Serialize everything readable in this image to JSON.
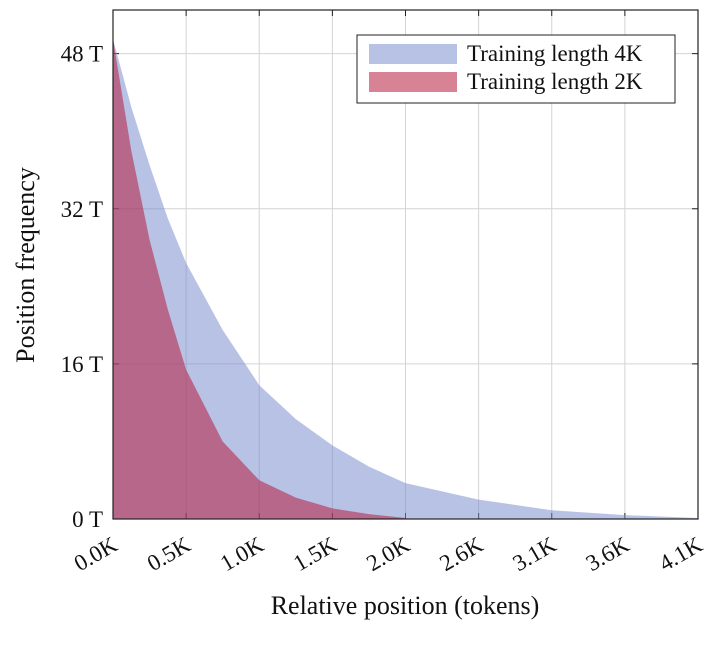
{
  "chart_data": {
    "type": "area",
    "x_label": "Relative position (tokens)",
    "y_label": "Position frequency",
    "x": [
      0,
      128,
      256,
      384,
      512,
      768,
      1024,
      1280,
      1536,
      1792,
      2048,
      2560,
      3072,
      3584,
      4096
    ],
    "series": [
      {
        "name": "Training length 4K",
        "color": "rgba(118,138,204,0.52)",
        "values": [
          49.5,
          42.5,
          36.5,
          31,
          26.4,
          19.5,
          13.8,
          10.3,
          7.6,
          5.4,
          3.7,
          2.0,
          0.9,
          0.4,
          0.1
        ]
      },
      {
        "name": "Training length 2K",
        "color": "rgba(182,30,62,0.55)",
        "values": [
          49.5,
          38,
          28.8,
          21.6,
          15.4,
          8,
          4.0,
          2.2,
          1.1,
          0.5,
          0.1,
          null,
          null,
          null,
          null
        ]
      }
    ],
    "xlim": [
      0,
      4096
    ],
    "xticks": [
      {
        "value": 0,
        "label": "0.0K"
      },
      {
        "value": 512,
        "label": "0.5K"
      },
      {
        "value": 1024,
        "label": "1.0K"
      },
      {
        "value": 1536,
        "label": "1.5K"
      },
      {
        "value": 2048,
        "label": "2.0K"
      },
      {
        "value": 2560,
        "label": "2.6K"
      },
      {
        "value": 3072,
        "label": "3.1K"
      },
      {
        "value": 3584,
        "label": "3.6K"
      },
      {
        "value": 4096,
        "label": "4.1K"
      }
    ],
    "ylim": [
      0,
      52.5
    ],
    "yticks": [
      {
        "value": 0,
        "label": "0 T"
      },
      {
        "value": 16,
        "label": "16 T"
      },
      {
        "value": 32,
        "label": "32 T"
      },
      {
        "value": 48,
        "label": "48 T"
      }
    ],
    "grid": true,
    "legend": "upper right"
  }
}
